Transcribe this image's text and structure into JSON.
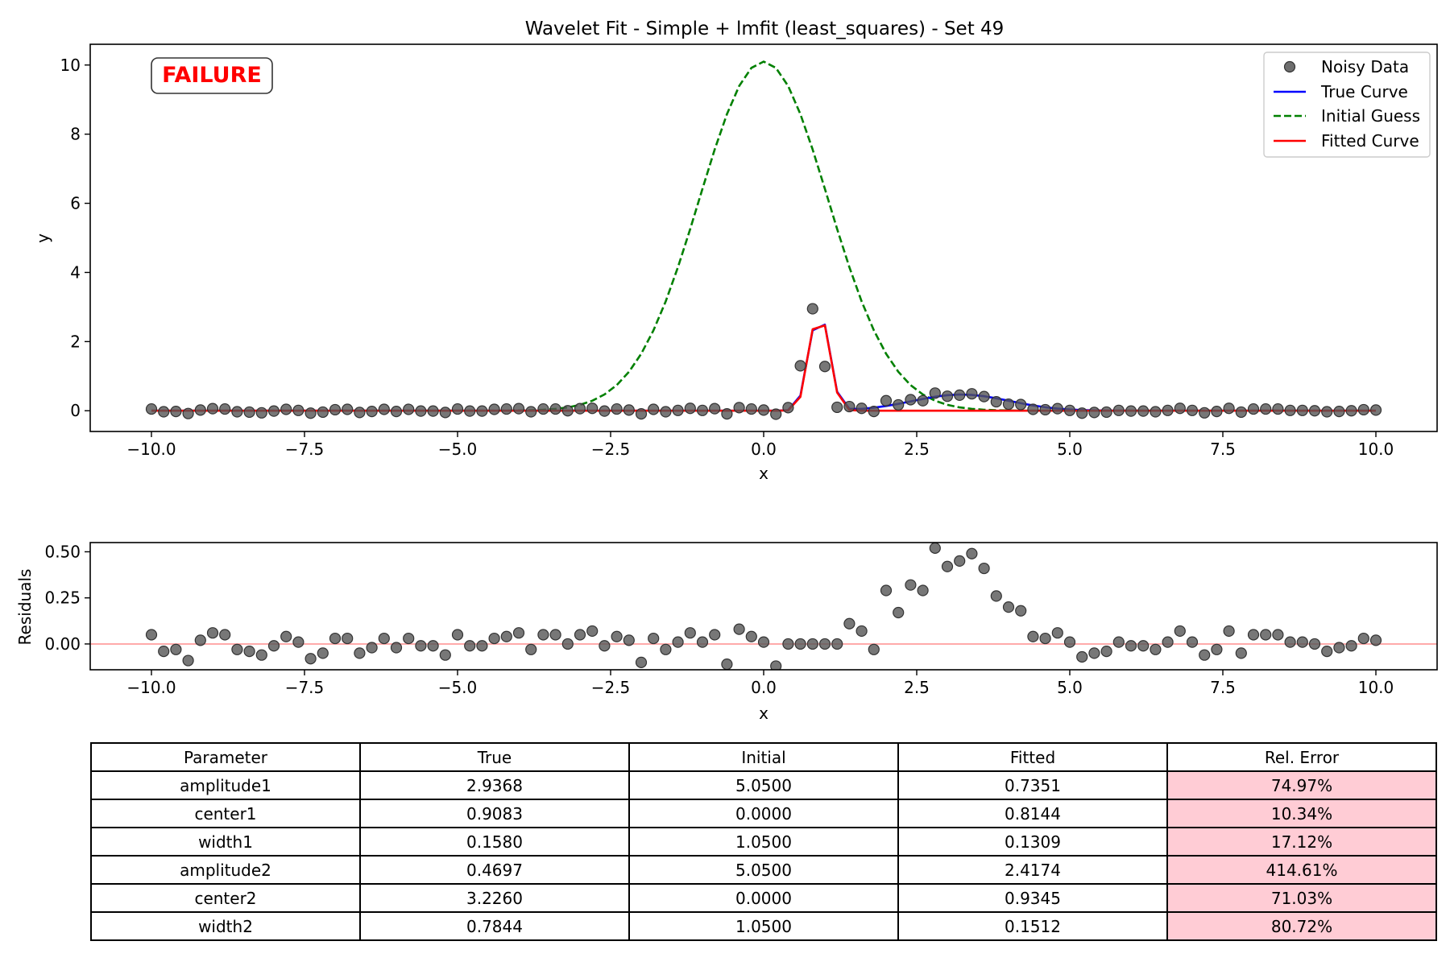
{
  "chart_data": [
    {
      "type": "scatter",
      "title": "Wavelet Fit - Simple + lmfit (least_squares) - Set 49",
      "xlabel": "x",
      "ylabel": "y",
      "xlim": [
        -11.0,
        11.0
      ],
      "ylim": [
        -0.6,
        10.6
      ],
      "xticks": [
        -10.0,
        -7.5,
        -5.0,
        -2.5,
        0.0,
        2.5,
        5.0,
        7.5,
        10.0
      ],
      "xtick_labels": [
        "−10.0",
        "−7.5",
        "−5.0",
        "−2.5",
        "0.0",
        "2.5",
        "5.0",
        "7.5",
        "10.0"
      ],
      "yticks": [
        0,
        2,
        4,
        6,
        8,
        10
      ],
      "ytick_labels": [
        "0",
        "2",
        "4",
        "6",
        "8",
        "10"
      ],
      "annotation": "FAILURE",
      "legend_position": "top-right",
      "grid": false,
      "series": [
        {
          "name": "Noisy Data",
          "kind": "markers",
          "color": "#555555",
          "x": [
            -10.0,
            -9.8,
            -9.6,
            -9.4,
            -9.2,
            -9.0,
            -8.8,
            -8.6,
            -8.4,
            -8.2,
            -8.0,
            -7.8,
            -7.6,
            -7.4,
            -7.2,
            -7.0,
            -6.8,
            -6.6,
            -6.4,
            -6.2,
            -6.0,
            -5.8,
            -5.6,
            -5.4,
            -5.2,
            -5.0,
            -4.8,
            -4.6,
            -4.4,
            -4.2,
            -4.0,
            -3.8,
            -3.6,
            -3.4,
            -3.2,
            -3.0,
            -2.8,
            -2.6,
            -2.4,
            -2.2,
            -2.0,
            -1.8,
            -1.6,
            -1.4,
            -1.2,
            -1.0,
            -0.8,
            -0.6,
            -0.4,
            -0.2,
            0.0,
            0.2,
            0.4,
            0.6,
            0.8,
            1.0,
            1.2,
            1.4,
            1.6,
            1.8,
            2.0,
            2.2,
            2.4,
            2.6,
            2.8,
            3.0,
            3.2,
            3.4,
            3.6,
            3.8,
            4.0,
            4.2,
            4.4,
            4.6,
            4.8,
            5.0,
            5.2,
            5.4,
            5.6,
            5.8,
            6.0,
            6.2,
            6.4,
            6.6,
            6.8,
            7.0,
            7.2,
            7.4,
            7.6,
            7.8,
            8.0,
            8.2,
            8.4,
            8.6,
            8.8,
            9.0,
            9.2,
            9.4,
            9.6,
            9.8,
            10.0
          ],
          "y": [
            0.05,
            -0.03,
            -0.02,
            -0.08,
            0.02,
            0.06,
            0.05,
            -0.03,
            -0.04,
            -0.06,
            -0.01,
            0.04,
            0.01,
            -0.07,
            -0.04,
            0.03,
            0.04,
            -0.05,
            -0.02,
            0.04,
            -0.02,
            0.04,
            -0.01,
            -0.01,
            -0.05,
            0.05,
            -0.01,
            -0.01,
            0.04,
            0.05,
            0.06,
            -0.03,
            0.05,
            0.05,
            0.0,
            0.06,
            0.07,
            -0.01,
            0.05,
            0.02,
            -0.09,
            0.04,
            -0.03,
            0.01,
            0.07,
            0.01,
            0.06,
            -0.09,
            0.09,
            0.05,
            0.02,
            -0.1,
            0.09,
            1.3,
            2.95,
            1.28,
            0.1,
            0.12,
            0.07,
            -0.02,
            0.29,
            0.17,
            0.32,
            0.29,
            0.51,
            0.42,
            0.45,
            0.49,
            0.41,
            0.26,
            0.19,
            0.18,
            0.04,
            0.03,
            0.06,
            0.01,
            -0.07,
            -0.05,
            -0.04,
            0.01,
            -0.01,
            -0.01,
            -0.03,
            0.01,
            0.07,
            0.01,
            -0.06,
            -0.02,
            0.07,
            -0.04,
            0.05,
            0.05,
            0.05,
            0.01,
            0.01,
            0.0,
            -0.03,
            -0.02,
            0.0,
            0.03,
            0.02
          ]
        },
        {
          "name": "True Curve",
          "kind": "line",
          "color": "#0000ff",
          "dash": "solid",
          "amplitude1": 2.9368,
          "center1": 0.9083,
          "width1": 0.158,
          "amplitude2": 0.4697,
          "center2": 3.226,
          "width2": 0.7844
        },
        {
          "name": "Initial Guess",
          "kind": "line",
          "color": "#008000",
          "dash": "dashed",
          "amplitude1": 5.05,
          "center1": 0.0,
          "width1": 1.05,
          "amplitude2": 5.05,
          "center2": 0.0,
          "width2": 1.05
        },
        {
          "name": "Fitted Curve",
          "kind": "line",
          "color": "#ff0000",
          "dash": "solid",
          "amplitude1": 0.7351,
          "center1": 0.8144,
          "width1": 0.1309,
          "amplitude2": 2.4174,
          "center2": 0.9345,
          "width2": 0.1512
        }
      ]
    },
    {
      "type": "scatter",
      "title": "",
      "xlabel": "x",
      "ylabel": "Residuals",
      "xlim": [
        -11.0,
        11.0
      ],
      "ylim": [
        -0.14,
        0.55
      ],
      "xticks": [
        -10.0,
        -7.5,
        -5.0,
        -2.5,
        0.0,
        2.5,
        5.0,
        7.5,
        10.0
      ],
      "xtick_labels": [
        "−10.0",
        "−7.5",
        "−5.0",
        "−2.5",
        "0.0",
        "2.5",
        "5.0",
        "7.5",
        "10.0"
      ],
      "yticks": [
        0.0,
        0.25,
        0.5
      ],
      "ytick_labels": [
        "0.00",
        "0.25",
        "0.50"
      ],
      "zero_line_color": "#ffaaaa",
      "series": [
        {
          "kind": "markers",
          "color": "#555555",
          "y": [
            0.05,
            -0.04,
            -0.03,
            -0.09,
            0.02,
            0.06,
            0.05,
            -0.03,
            -0.04,
            -0.06,
            -0.01,
            0.04,
            0.01,
            -0.08,
            -0.05,
            0.03,
            0.03,
            -0.05,
            -0.02,
            0.03,
            -0.02,
            0.03,
            -0.01,
            -0.01,
            -0.06,
            0.05,
            -0.01,
            -0.01,
            0.03,
            0.04,
            0.06,
            -0.03,
            0.05,
            0.05,
            0.0,
            0.05,
            0.07,
            -0.01,
            0.04,
            0.02,
            -0.1,
            0.03,
            -0.03,
            0.01,
            0.06,
            0.01,
            0.05,
            -0.11,
            0.08,
            0.04,
            0.01,
            -0.12,
            0.0,
            0.0,
            0.0,
            0.0,
            0.0,
            0.11,
            0.07,
            -0.03,
            0.29,
            0.17,
            0.32,
            0.29,
            0.52,
            0.42,
            0.45,
            0.49,
            0.41,
            0.26,
            0.2,
            0.18,
            0.04,
            0.03,
            0.06,
            0.01,
            -0.07,
            -0.05,
            -0.04,
            0.01,
            -0.01,
            -0.01,
            -0.03,
            0.01,
            0.07,
            0.01,
            -0.06,
            -0.03,
            0.07,
            -0.05,
            0.05,
            0.05,
            0.05,
            0.01,
            0.01,
            0.0,
            -0.04,
            -0.02,
            -0.01,
            0.03,
            0.02
          ]
        }
      ]
    }
  ],
  "table": {
    "headers": [
      "Parameter",
      "True",
      "Initial",
      "Fitted",
      "Rel. Error"
    ],
    "rows": [
      [
        "amplitude1",
        "2.9368",
        "5.0500",
        "0.7351",
        "74.97%"
      ],
      [
        "center1",
        "0.9083",
        "0.0000",
        "0.8144",
        "10.34%"
      ],
      [
        "width1",
        "0.1580",
        "1.0500",
        "0.1309",
        "17.12%"
      ],
      [
        "amplitude2",
        "0.4697",
        "5.0500",
        "2.4174",
        "414.61%"
      ],
      [
        "center2",
        "3.2260",
        "0.0000",
        "0.9345",
        "71.03%"
      ],
      [
        "width2",
        "0.7844",
        "1.0500",
        "0.1512",
        "80.72%"
      ]
    ],
    "error_cell_color": "#ffccd5"
  }
}
